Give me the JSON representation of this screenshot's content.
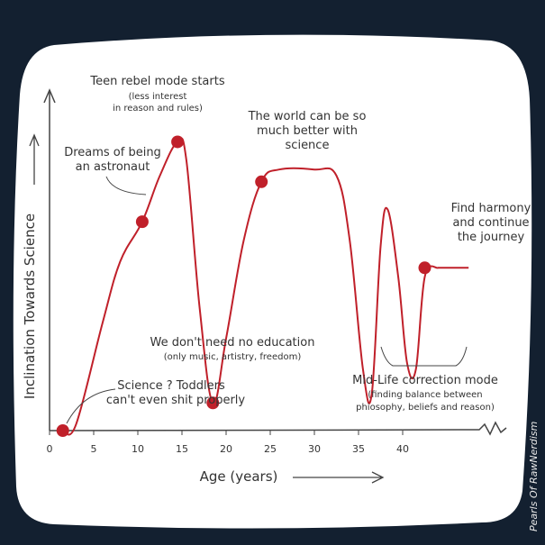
{
  "chart_data": {
    "type": "line",
    "xlabel": "Age (years)",
    "ylabel": "Inclination Towards Science",
    "x_ticks": [
      0,
      5,
      10,
      15,
      20,
      25,
      30,
      35,
      40
    ],
    "xlim": [
      0,
      45
    ],
    "ylim": [
      0,
      100
    ],
    "line_color": "#c0202a",
    "series": [
      {
        "x": [
          1.5,
          3,
          6,
          8,
          10.5,
          12.5,
          14.5,
          15.5,
          17,
          18.5,
          20,
          22,
          24,
          26,
          30,
          32.5,
          34,
          35.5,
          36.5,
          37.5,
          38.3,
          39.5,
          40.5,
          41.5,
          42.5,
          44
        ],
        "y": [
          0,
          2,
          35,
          55,
          68,
          83,
          94,
          88,
          40,
          9,
          30,
          62,
          81,
          85,
          85,
          83,
          62,
          20,
          12,
          60,
          72,
          50,
          22,
          20,
          50,
          53
        ]
      }
    ],
    "points": [
      {
        "x": 1.5,
        "y": 0
      },
      {
        "x": 10.5,
        "y": 68
      },
      {
        "x": 14.5,
        "y": 94
      },
      {
        "x": 18.5,
        "y": 9
      },
      {
        "x": 24,
        "y": 81
      },
      {
        "x": 42.5,
        "y": 53
      }
    ]
  },
  "annotations": {
    "teen_main": "Teen rebel mode starts",
    "teen_sub1": "(less interest",
    "teen_sub2": "in reason and rules)",
    "astro_1": "Dreams of being",
    "astro_2": "an astronaut",
    "world_1": "The world can be so",
    "world_2": "much better with",
    "world_3": "science",
    "harmony_1": "Find harmony",
    "harmony_2": "and continue",
    "harmony_3": "the journey",
    "edu_main": "We don't need no education",
    "edu_sub": "(only music, artistry, freedom)",
    "toddler_1": "Science ? Toddlers",
    "toddler_2": "can't even shit properly",
    "midlife_main": "Mid-Life correction mode",
    "midlife_sub1": "(finding balance between",
    "midlife_sub2": "phiosophy, beliefs and reason)"
  },
  "credit": "Pearls Of RawNerdism"
}
